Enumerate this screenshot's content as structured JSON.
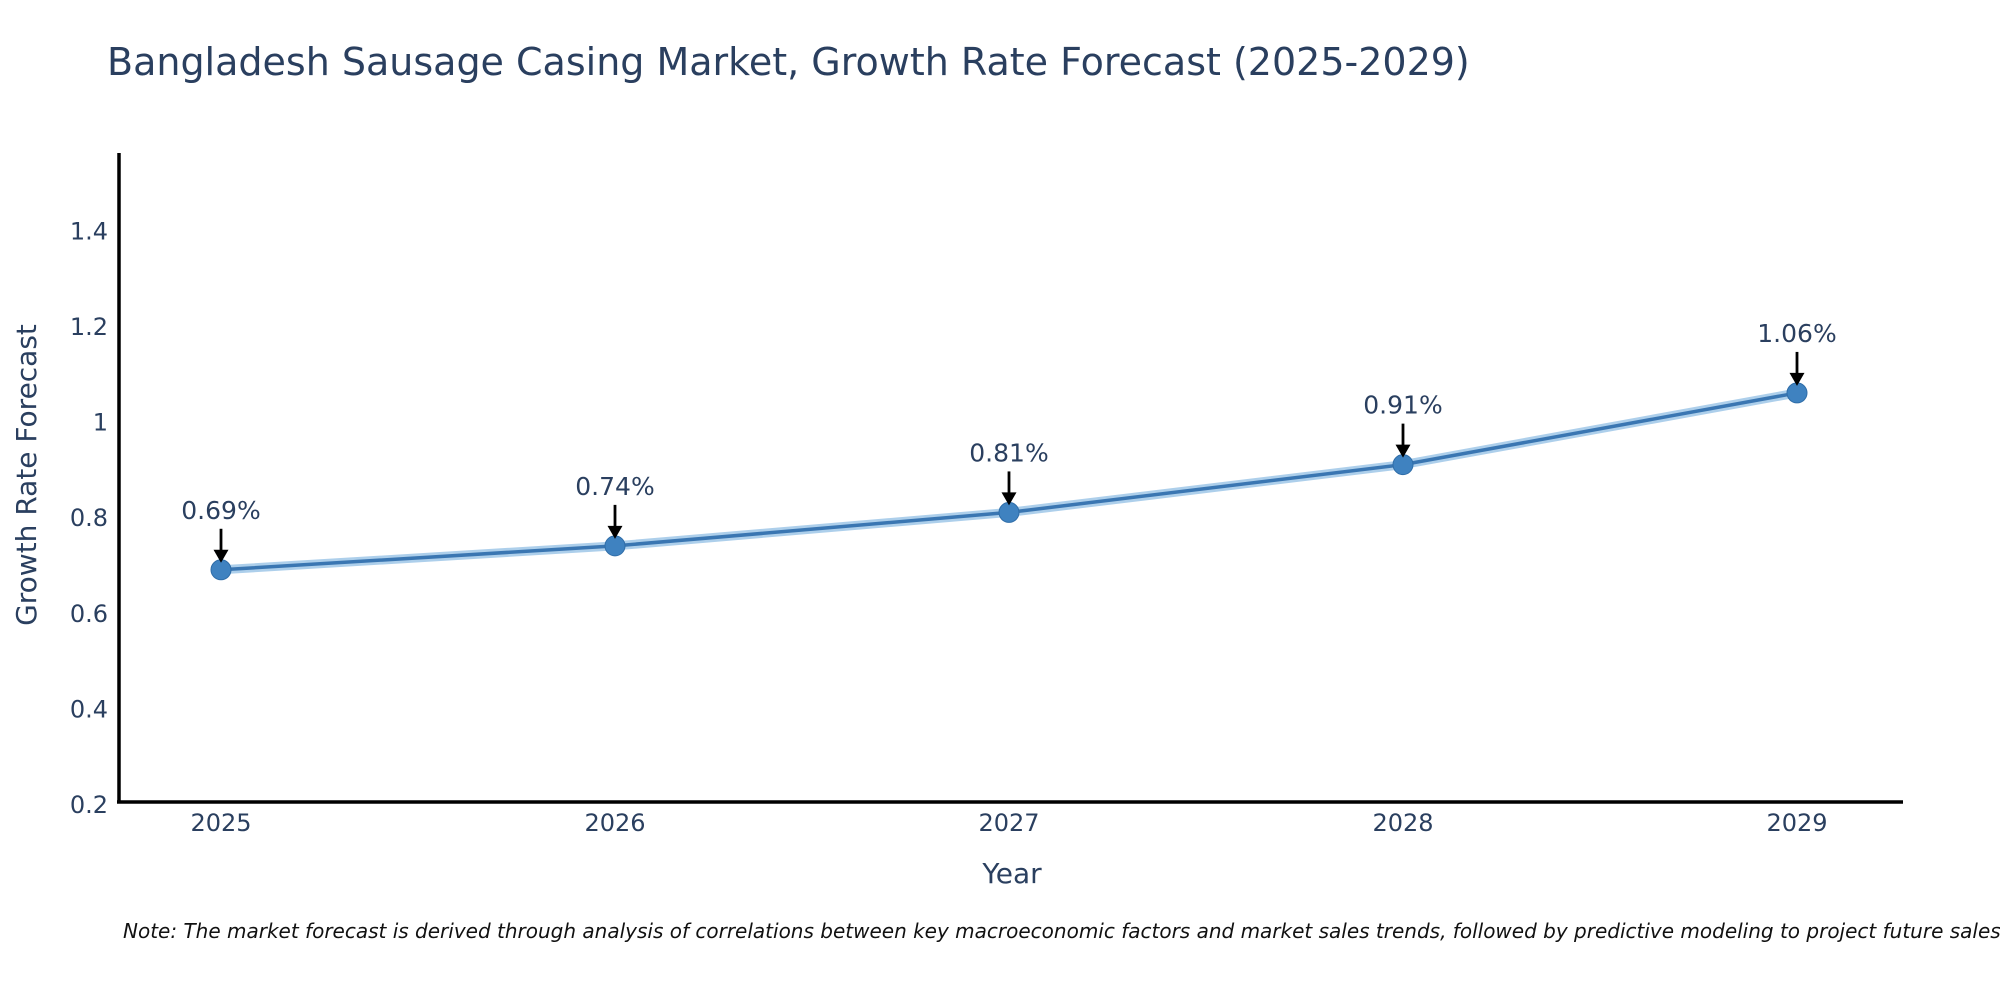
{
  "title": "Bangladesh Sausage Casing Market, Growth Rate Forecast (2025-2029)",
  "note": "Note: The market forecast is derived through analysis of correlations between key macroeconomic factors and market sales trends, followed by predictive modeling to project future sales",
  "chart_data": {
    "type": "line",
    "title": "Bangladesh Sausage Casing Market, Growth Rate Forecast (2025-2029)",
    "xlabel": "Year",
    "ylabel": "Growth Rate Forecast",
    "x": [
      2025,
      2026,
      2027,
      2028,
      2029
    ],
    "series": [
      {
        "name": "Growth Rate Forecast",
        "values": [
          0.69,
          0.74,
          0.81,
          0.91,
          1.06
        ]
      }
    ],
    "point_labels": [
      "0.69%",
      "0.74%",
      "0.81%",
      "0.91%",
      "1.06%"
    ],
    "yticks": [
      0.2,
      0.4,
      0.6,
      0.8,
      1,
      1.2,
      1.4
    ],
    "ylim": [
      0.2,
      1.56
    ],
    "grid": false,
    "legend_position": "none",
    "annotation_style": "value label with downward arrow to marker",
    "colors": {
      "line": "#3a76b2",
      "line_halo": "#9fc7e8",
      "marker": "#3f82c0",
      "marker_edge": "#2f6da8",
      "text": "#2a3f5f",
      "axis": "#000000",
      "annotation_arrow": "#000000",
      "note_text": "#111111",
      "background": "#ffffff"
    }
  }
}
